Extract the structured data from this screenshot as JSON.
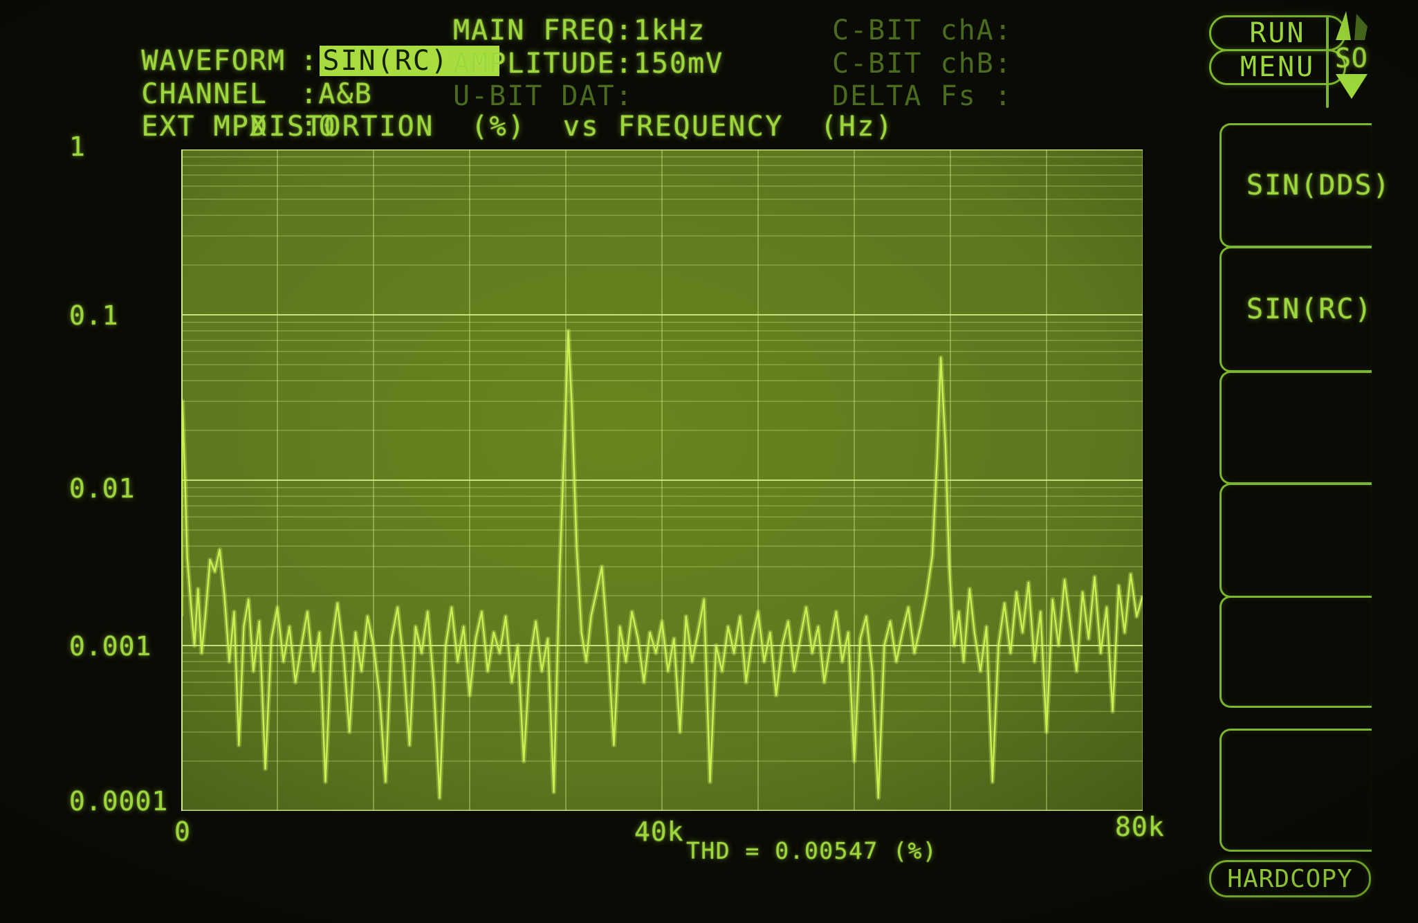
{
  "header": {
    "params_left": [
      {
        "label": "WAVEFORM",
        "sep": ":",
        "value": "SIN(RC)"
      },
      {
        "label": "CHANNEL",
        "sep": ":",
        "value": "A&B"
      },
      {
        "label": "EXT MPX",
        "sep": ":",
        "value": "0"
      }
    ],
    "params_mid": [
      "MAIN FREQ:1kHz",
      "AMPLITUDE:150mV",
      "U-BIT DAT:"
    ],
    "params_right": [
      "C-BIT chA:",
      "C-BIT chB:",
      "DELTA Fs :"
    ]
  },
  "controls": {
    "run_label": "RUN",
    "menu_label": "MENU",
    "scroll_label": "SO",
    "softkeys": [
      {
        "label": "SIN(DDS)"
      },
      {
        "label": "SIN(RC)"
      },
      {
        "label": ""
      },
      {
        "label": ""
      },
      {
        "label": ""
      },
      {
        "label": ""
      }
    ],
    "hardcopy_label": "HARDCOPY"
  },
  "colors": {
    "bright": "#9cd83b",
    "dim": "#4a6b1e",
    "highlight_bg": "#a9dc3f",
    "highlight_text": "#122105",
    "border": "#7cb62c",
    "plot_bg": "#5c771e",
    "plot_bg_center": "#68851f",
    "plot_bg_edge": "#455c18",
    "grid": "#d8f28e",
    "trace": "#c9f04e",
    "trace_glow": "#d9ff73"
  },
  "chart_data": {
    "type": "line",
    "title": "DISTORTION  (%)  vs FREQUENCY  (Hz)",
    "xlabel": "FREQUENCY (Hz)",
    "ylabel": "DISTORTION (%)",
    "x_unit": "kHz",
    "xlim": [
      0,
      80
    ],
    "x_ticks": [
      "0",
      "40k",
      "80k"
    ],
    "x_grid_divisions": 10,
    "y_scale": "log",
    "ylim": [
      0.0001,
      1
    ],
    "y_decades": 4,
    "y_ticks": [
      "1",
      "0.1",
      "0.01",
      "0.001",
      "0.0001"
    ],
    "grid": true,
    "legend": "none",
    "thd_readout": "THD = 0.00547 (%)",
    "annotations": {
      "dc_spike_percent": 0.03,
      "peak1": {
        "freq_khz": 32.2,
        "percent": 0.08
      },
      "peak2": {
        "freq_khz": 63.2,
        "percent": 0.055
      },
      "noise_floor_percent": 0.001
    },
    "series": [
      {
        "name": "distortion_vs_frequency",
        "points": [
          [
            0,
            0.0015
          ],
          [
            0.1,
            0.03
          ],
          [
            0.3,
            0.011
          ],
          [
            0.5,
            0.0034
          ],
          [
            0.8,
            0.0018
          ],
          [
            1.1,
            0.001
          ],
          [
            1.4,
            0.0022
          ],
          [
            1.7,
            0.0009
          ],
          [
            2.0,
            0.0015
          ],
          [
            2.4,
            0.0033
          ],
          [
            2.8,
            0.0028
          ],
          [
            3.2,
            0.0038
          ],
          [
            3.6,
            0.002
          ],
          [
            4.0,
            0.0008
          ],
          [
            4.4,
            0.0016
          ],
          [
            4.8,
            0.00025
          ],
          [
            5.2,
            0.0013
          ],
          [
            5.6,
            0.0019
          ],
          [
            6.0,
            0.0007
          ],
          [
            6.5,
            0.0014
          ],
          [
            7.0,
            0.00018
          ],
          [
            7.5,
            0.0011
          ],
          [
            8.0,
            0.0017
          ],
          [
            8.5,
            0.0008
          ],
          [
            9.0,
            0.0013
          ],
          [
            9.5,
            0.0006
          ],
          [
            10.0,
            0.001
          ],
          [
            10.5,
            0.0016
          ],
          [
            11.0,
            0.0007
          ],
          [
            11.5,
            0.0012
          ],
          [
            12.0,
            0.00015
          ],
          [
            12.5,
            0.001
          ],
          [
            13.0,
            0.0018
          ],
          [
            13.5,
            0.0009
          ],
          [
            14.0,
            0.0003
          ],
          [
            14.5,
            0.0012
          ],
          [
            15.0,
            0.0007
          ],
          [
            15.5,
            0.0015
          ],
          [
            16.0,
            0.001
          ],
          [
            16.5,
            0.0005
          ],
          [
            17.0,
            0.00015
          ],
          [
            17.5,
            0.0011
          ],
          [
            18.0,
            0.0017
          ],
          [
            18.5,
            0.0008
          ],
          [
            19.0,
            0.00025
          ],
          [
            19.5,
            0.0013
          ],
          [
            20.0,
            0.0009
          ],
          [
            20.5,
            0.0016
          ],
          [
            21.0,
            0.0006
          ],
          [
            21.5,
            0.00012
          ],
          [
            22.0,
            0.001
          ],
          [
            22.5,
            0.0017
          ],
          [
            23.0,
            0.0008
          ],
          [
            23.5,
            0.0013
          ],
          [
            24.0,
            0.0005
          ],
          [
            24.5,
            0.0011
          ],
          [
            25.0,
            0.0016
          ],
          [
            25.5,
            0.0007
          ],
          [
            26.0,
            0.0012
          ],
          [
            26.5,
            0.0009
          ],
          [
            27.0,
            0.0015
          ],
          [
            27.5,
            0.0006
          ],
          [
            28.0,
            0.001
          ],
          [
            28.5,
            0.0002
          ],
          [
            29.0,
            0.0008
          ],
          [
            29.5,
            0.0014
          ],
          [
            30.0,
            0.0007
          ],
          [
            30.5,
            0.0011
          ],
          [
            31.0,
            0.00013
          ],
          [
            31.5,
            0.003
          ],
          [
            31.9,
            0.018
          ],
          [
            32.2,
            0.08
          ],
          [
            32.5,
            0.028
          ],
          [
            32.9,
            0.004
          ],
          [
            33.3,
            0.0012
          ],
          [
            33.7,
            0.0008
          ],
          [
            34.1,
            0.0015
          ],
          [
            34.6,
            0.0022
          ],
          [
            35.0,
            0.003
          ],
          [
            35.5,
            0.001
          ],
          [
            36.0,
            0.00025
          ],
          [
            36.5,
            0.0013
          ],
          [
            37.0,
            0.0008
          ],
          [
            37.5,
            0.0016
          ],
          [
            38.0,
            0.0011
          ],
          [
            38.5,
            0.0006
          ],
          [
            39.0,
            0.0012
          ],
          [
            39.5,
            0.0009
          ],
          [
            40.0,
            0.0014
          ],
          [
            40.5,
            0.0007
          ],
          [
            41.0,
            0.0011
          ],
          [
            41.5,
            0.0003
          ],
          [
            42.0,
            0.0015
          ],
          [
            42.5,
            0.0008
          ],
          [
            43.0,
            0.0012
          ],
          [
            43.5,
            0.0019
          ],
          [
            44.0,
            0.00015
          ],
          [
            44.5,
            0.001
          ],
          [
            45.0,
            0.0007
          ],
          [
            45.5,
            0.0013
          ],
          [
            46.0,
            0.0009
          ],
          [
            46.5,
            0.0015
          ],
          [
            47.0,
            0.0006
          ],
          [
            47.5,
            0.0011
          ],
          [
            48.0,
            0.0016
          ],
          [
            48.5,
            0.0008
          ],
          [
            49.0,
            0.0012
          ],
          [
            49.5,
            0.0005
          ],
          [
            50.0,
            0.001
          ],
          [
            50.5,
            0.0014
          ],
          [
            51.0,
            0.0007
          ],
          [
            51.5,
            0.0011
          ],
          [
            52.0,
            0.0017
          ],
          [
            52.5,
            0.0009
          ],
          [
            53.0,
            0.0013
          ],
          [
            53.5,
            0.0006
          ],
          [
            54.0,
            0.001
          ],
          [
            54.5,
            0.0016
          ],
          [
            55.0,
            0.0008
          ],
          [
            55.5,
            0.0012
          ],
          [
            56.0,
            0.0002
          ],
          [
            56.5,
            0.0011
          ],
          [
            57.0,
            0.0015
          ],
          [
            57.5,
            0.0007
          ],
          [
            58.0,
            0.00012
          ],
          [
            58.5,
            0.001
          ],
          [
            59.0,
            0.0014
          ],
          [
            59.5,
            0.0008
          ],
          [
            60.0,
            0.0012
          ],
          [
            60.5,
            0.0017
          ],
          [
            61.0,
            0.0009
          ],
          [
            61.5,
            0.0013
          ],
          [
            62.0,
            0.002
          ],
          [
            62.5,
            0.0035
          ],
          [
            62.9,
            0.014
          ],
          [
            63.2,
            0.055
          ],
          [
            63.6,
            0.016
          ],
          [
            63.9,
            0.003
          ],
          [
            64.3,
            0.001
          ],
          [
            64.7,
            0.0016
          ],
          [
            65.1,
            0.0008
          ],
          [
            65.6,
            0.0022
          ],
          [
            66.0,
            0.0012
          ],
          [
            66.5,
            0.0007
          ],
          [
            67.0,
            0.0013
          ],
          [
            67.5,
            0.00015
          ],
          [
            68.0,
            0.001
          ],
          [
            68.5,
            0.0018
          ],
          [
            69.0,
            0.0009
          ],
          [
            69.5,
            0.0021
          ],
          [
            70.0,
            0.0012
          ],
          [
            70.5,
            0.0024
          ],
          [
            71.0,
            0.0008
          ],
          [
            71.5,
            0.0016
          ],
          [
            72.0,
            0.0003
          ],
          [
            72.5,
            0.0019
          ],
          [
            73.0,
            0.001
          ],
          [
            73.5,
            0.0025
          ],
          [
            74.0,
            0.0013
          ],
          [
            74.5,
            0.0007
          ],
          [
            75.0,
            0.0021
          ],
          [
            75.5,
            0.0011
          ],
          [
            76.0,
            0.0026
          ],
          [
            76.5,
            0.0009
          ],
          [
            77.0,
            0.0017
          ],
          [
            77.5,
            0.0004
          ],
          [
            78.0,
            0.0023
          ],
          [
            78.5,
            0.0012
          ],
          [
            79.0,
            0.0027
          ],
          [
            79.5,
            0.0015
          ],
          [
            80.0,
            0.002
          ]
        ]
      }
    ]
  }
}
